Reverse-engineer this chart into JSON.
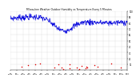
{
  "title": "Milwaukee Weather Outdoor Humidity vs Temperature Every 5 Minutes",
  "title_fontsize": 2.2,
  "title_color": "#000000",
  "bg_color": "#ffffff",
  "plot_bg_color": "#ffffff",
  "grid_color": "#888888",
  "humidity_color": "#0000dd",
  "temp_color": "#dd0000",
  "ylim_min": 0,
  "ylim_max": 100,
  "n_points": 288,
  "yticks": [
    10,
    20,
    30,
    40,
    50,
    60,
    70,
    80,
    90,
    100
  ],
  "ytick_fontsize": 1.8,
  "xtick_fontsize": 1.5,
  "linewidth": 0.5,
  "markersize": 0.6,
  "temp_markersize": 1.2
}
